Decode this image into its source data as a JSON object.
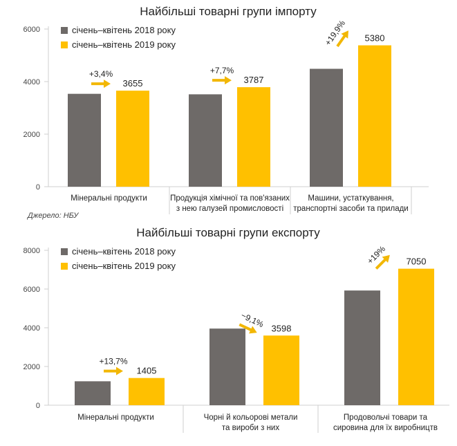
{
  "source": "Джерело: НБУ",
  "colors": {
    "y2018": "#6e6a68",
    "y2019": "#ffc000",
    "arrow": "#f2b705",
    "axis": "#cfcfcf",
    "text": "#222222"
  },
  "chart_data": [
    {
      "type": "bar",
      "title": "Найбільші товарні групи імпорту",
      "categories": [
        [
          "Мінеральні продукти"
        ],
        [
          "Продукція хімічної та пов'язаних",
          "з нею галузей промисловості"
        ],
        [
          "Машини, устаткування,",
          "транспортні засоби та прилади"
        ]
      ],
      "series": [
        {
          "name": "січень–квітень 2018 року",
          "values": [
            3535,
            3516,
            4487
          ]
        },
        {
          "name": "січень–квітень 2019 року",
          "values": [
            3655,
            3787,
            5380
          ]
        }
      ],
      "data_labels": [
        "3655",
        "3787",
        "5380"
      ],
      "growth": [
        "+3,4%",
        "+7,7%",
        "+19,9%"
      ],
      "ylim": [
        0,
        6000
      ],
      "yticks": [
        0,
        2000,
        4000,
        6000
      ],
      "legend": "top-left",
      "grid": false
    },
    {
      "type": "bar",
      "title": "Найбільші товарні групи експорту",
      "categories": [
        [
          "Мінеральні продукти"
        ],
        [
          "Чорні й кольорові метали",
          "та вироби з них"
        ],
        [
          "Продовольчі товари та",
          "сировина для їх виробництв"
        ]
      ],
      "series": [
        {
          "name": "січень–квітень 2018 року",
          "values": [
            1236,
            3958,
            5924
          ]
        },
        {
          "name": "січень–квітень 2019 року",
          "values": [
            1405,
            3598,
            7050
          ]
        }
      ],
      "data_labels": [
        "1405",
        "3598",
        "7050"
      ],
      "growth": [
        "+13,7%",
        "−9,1%",
        "+19%"
      ],
      "ylim": [
        0,
        8000
      ],
      "yticks": [
        0,
        2000,
        4000,
        6000,
        8000
      ],
      "legend": "top-left",
      "grid": false
    }
  ]
}
